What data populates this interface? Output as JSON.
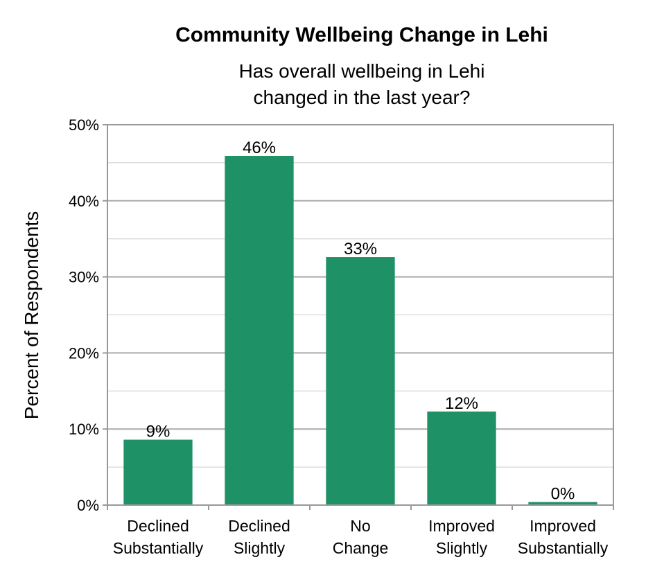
{
  "chart_data": {
    "type": "bar",
    "title": "Community Wellbeing Change in Lehi",
    "subtitle_lines": [
      "Has overall wellbeing in Lehi",
      "changed in the last year?"
    ],
    "ylabel": "Percent of Respondents",
    "xlabel": "",
    "categories": [
      [
        "Declined",
        "Substantially"
      ],
      [
        "Declined",
        "Slightly"
      ],
      [
        "No",
        "Change"
      ],
      [
        "Improved",
        "Slightly"
      ],
      [
        "Improved",
        "Substantially"
      ]
    ],
    "values": [
      8.6,
      45.9,
      32.6,
      12.3,
      0.4
    ],
    "data_labels": [
      "9%",
      "46%",
      "33%",
      "12%",
      "0%"
    ],
    "ylim": [
      0,
      50
    ],
    "yticks": [
      0,
      10,
      20,
      30,
      40,
      50
    ],
    "ytick_labels": [
      "0%",
      "10%",
      "20%",
      "30%",
      "40%",
      "50%"
    ],
    "grid": true,
    "minor_grid": true,
    "legend": "none",
    "bar_color": "#1f9166",
    "grid_color": "#aaaaaa",
    "minor_grid_color": "#cccccc"
  }
}
